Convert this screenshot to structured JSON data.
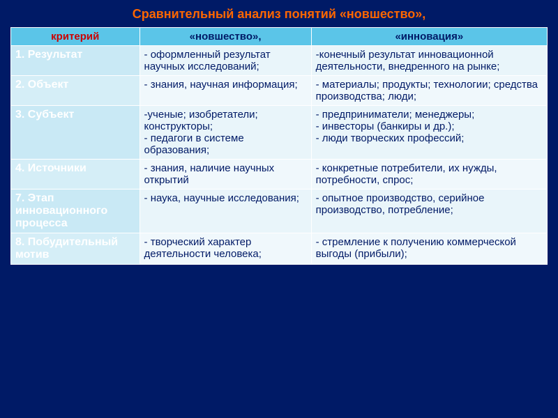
{
  "title": "Сравнительный анализ понятий «новшество»,",
  "headers": {
    "criterion": "критерий",
    "novelty": "«новшество»,",
    "innovation": "«инновация»"
  },
  "rows": [
    {
      "crit": "1. Результат",
      "nov": "- оформленный результат научных исследований;",
      "inn": "-конечный результат инновационной деятельности, внедренного на рынке;"
    },
    {
      "crit": "2. Объект",
      "nov": "- знания, научная информация;",
      "inn": "- материалы; продукты; технологии; средства производства; люди;"
    },
    {
      "crit": "3. Субъект",
      "nov": "-ученые; изобретатели; конструкторы;\n- педагоги в системе образования;",
      "inn": "- предприниматели; менеджеры;\n- инвесторы (банкиры и др.);\n- люди творческих профессий;"
    },
    {
      "crit": "4. Источники",
      "nov": "- знания, наличие научных открытий",
      "inn": "- конкретные потребители, их нужды, потребности, спрос;"
    },
    {
      "crit": "7. Этап инновационного процесса",
      "nov": "- наука, научные исследования;",
      "inn": "- опытное производство, серийное производство, потребление;"
    },
    {
      "crit": "8. Побудительный мотив",
      "nov": "- творческий характер деятельности человека;",
      "inn": "- стремление к получению коммерческой выгоды (прибыли);"
    }
  ],
  "colors": {
    "background": "#001a66",
    "title": "#ff6600",
    "header_bg": "#5bc5e8",
    "crit_header": "#cc0000",
    "col_header": "#001a66",
    "crit_text": "#ffffff",
    "cell_text": "#001a66",
    "odd_crit_bg": "#c9e9f5",
    "odd_cell_bg": "#e9f5fa",
    "even_crit_bg": "#d5eef7",
    "even_cell_bg": "#f0f8fc",
    "border": "#ffffff"
  },
  "typography": {
    "title_fontsize": 18,
    "header_fontsize": 15,
    "crit_fontsize": 16,
    "cell_fontsize": 15,
    "font_family": "Verdana"
  },
  "layout": {
    "col_widths_pct": [
      24,
      32,
      44
    ],
    "slide_width": 800,
    "slide_height": 600
  }
}
